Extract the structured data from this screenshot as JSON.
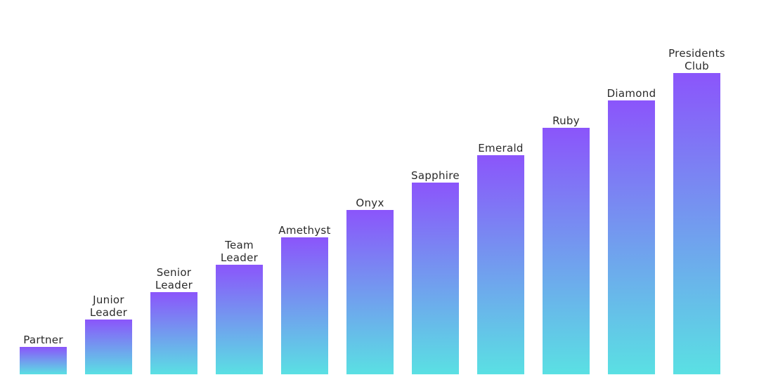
{
  "chart_data": {
    "type": "bar",
    "categories": [
      "Partner",
      "Junior Leader",
      "Senior Leader",
      "Team Leader",
      "Amethyst",
      "Onyx",
      "Sapphire",
      "Emerald",
      "Ruby",
      "Diamond",
      "Presidents Club"
    ],
    "values": [
      1,
      2,
      3,
      4,
      5,
      6,
      7,
      8,
      9,
      10,
      11
    ],
    "title": "",
    "xlabel": "",
    "ylabel": "",
    "grid": false,
    "legend": "none",
    "gradient": {
      "top_color": "#8b55fb",
      "bottom_color": "#5ae0e3"
    }
  }
}
